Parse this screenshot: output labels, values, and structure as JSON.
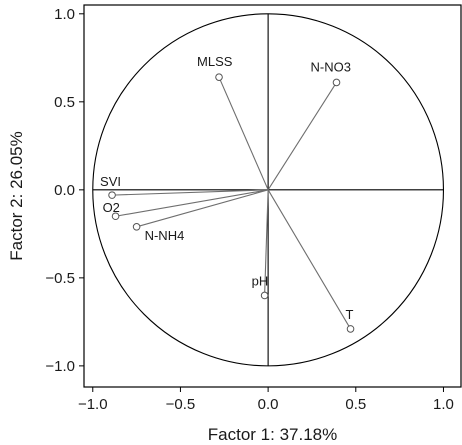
{
  "chart_data": {
    "type": "scatter",
    "title": "",
    "xlabel": "Factor 1: 37.18%",
    "ylabel": "Factor 2: 26.05%",
    "xlim": [
      -1.05,
      1.1
    ],
    "ylim": [
      -1.12,
      1.05
    ],
    "xticks": [
      -1.0,
      -0.5,
      0.0,
      0.5,
      1.0
    ],
    "yticks": [
      1.0,
      0.5,
      0.0,
      -0.5,
      -1.0
    ],
    "xtick_labels": [
      "−1.0",
      "−0.5",
      "0.0",
      "0.5",
      "1.0"
    ],
    "ytick_labels": [
      "1.0",
      "0.5",
      "0.0",
      "−0.5",
      "−1.0"
    ],
    "unit_circle": true,
    "grid": false,
    "points": [
      {
        "label": "MLSS",
        "x": -0.28,
        "y": 0.64
      },
      {
        "label": "N-NO3",
        "x": 0.39,
        "y": 0.61
      },
      {
        "label": "SVI",
        "x": -0.89,
        "y": -0.03
      },
      {
        "label": "O2",
        "x": -0.87,
        "y": -0.15
      },
      {
        "label": "N-NH4",
        "x": -0.75,
        "y": -0.21
      },
      {
        "label": "pH",
        "x": -0.02,
        "y": -0.6
      },
      {
        "label": "T",
        "x": 0.47,
        "y": -0.79
      }
    ]
  }
}
